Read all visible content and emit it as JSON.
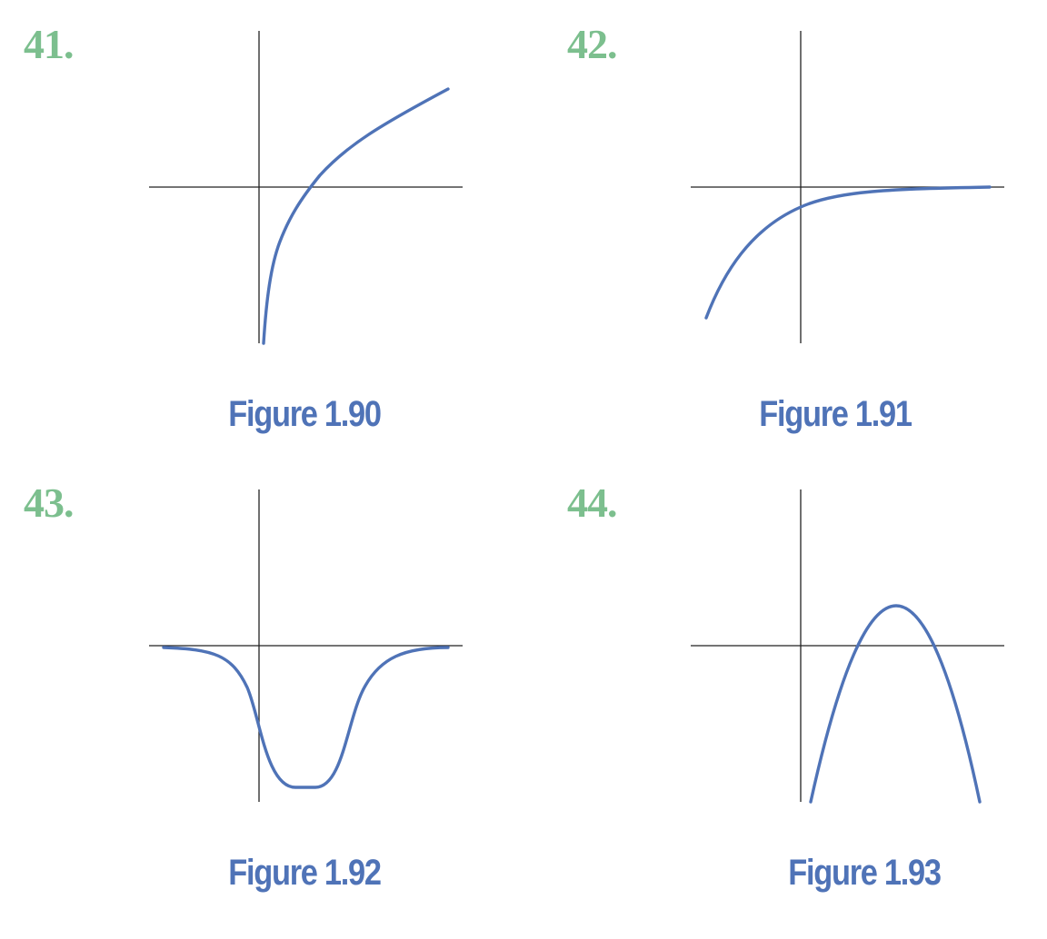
{
  "colors": {
    "number": "#7cbf8e",
    "curve": "#4f73b7",
    "caption": "#4f73b7",
    "axis": "#222222"
  },
  "problems": [
    {
      "number": "41.",
      "caption": "Figure 1.90",
      "curve_shape": "increasing-concave-down"
    },
    {
      "number": "42.",
      "caption": "Figure 1.91",
      "curve_shape": "increasing-asymptotic-to-x-axis"
    },
    {
      "number": "43.",
      "caption": "Figure 1.92",
      "curve_shape": "negative-dip-flat-bottom"
    },
    {
      "number": "44.",
      "caption": "Figure 1.93",
      "curve_shape": "downward-parabola"
    }
  ]
}
